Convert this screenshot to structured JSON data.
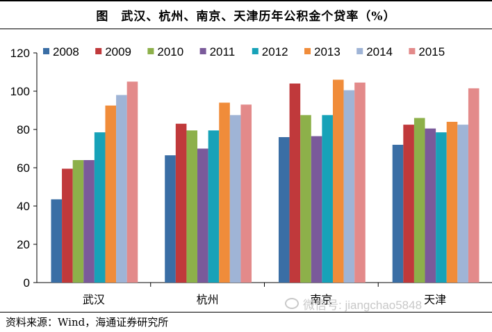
{
  "header": {
    "fig_label": "图",
    "title": "武汉、杭州、南京、天津历年公积金个贷率（%）"
  },
  "source": "资料来源：Wind，海通证券研究所",
  "watermark": {
    "text": "微信号: jiangchao5848",
    "icon": "wechat-icon"
  },
  "chart_data": {
    "type": "bar",
    "title": "武汉、杭州、南京、天津历年公积金个贷率（%）",
    "xlabel": "",
    "ylabel": "",
    "categories": [
      "武汉",
      "杭州",
      "南京",
      "天津"
    ],
    "ylim": [
      0,
      120
    ],
    "yticks": [
      0,
      20,
      40,
      60,
      80,
      100,
      120
    ],
    "grid": false,
    "legend": "top",
    "series": [
      {
        "name": "2008",
        "color": "#3A6EA5",
        "values": [
          43.5,
          66.5,
          76,
          72
        ]
      },
      {
        "name": "2009",
        "color": "#C0393B",
        "values": [
          59.5,
          83,
          104,
          82.5
        ]
      },
      {
        "name": "2010",
        "color": "#8DB04A",
        "values": [
          64,
          79.5,
          87.5,
          86
        ]
      },
      {
        "name": "2011",
        "color": "#7A5A9A",
        "values": [
          64,
          70,
          76.5,
          80.5
        ]
      },
      {
        "name": "2012",
        "color": "#17A2B8",
        "values": [
          78.5,
          79.5,
          87.5,
          78.5
        ]
      },
      {
        "name": "2013",
        "color": "#F08C3A",
        "values": [
          92.5,
          94,
          106,
          84
        ]
      },
      {
        "name": "2014",
        "color": "#9FB4D6",
        "values": [
          98,
          87.5,
          100.5,
          82.5
        ]
      },
      {
        "name": "2015",
        "color": "#E38A8A",
        "values": [
          105,
          93,
          104.5,
          101.5
        ]
      }
    ]
  }
}
